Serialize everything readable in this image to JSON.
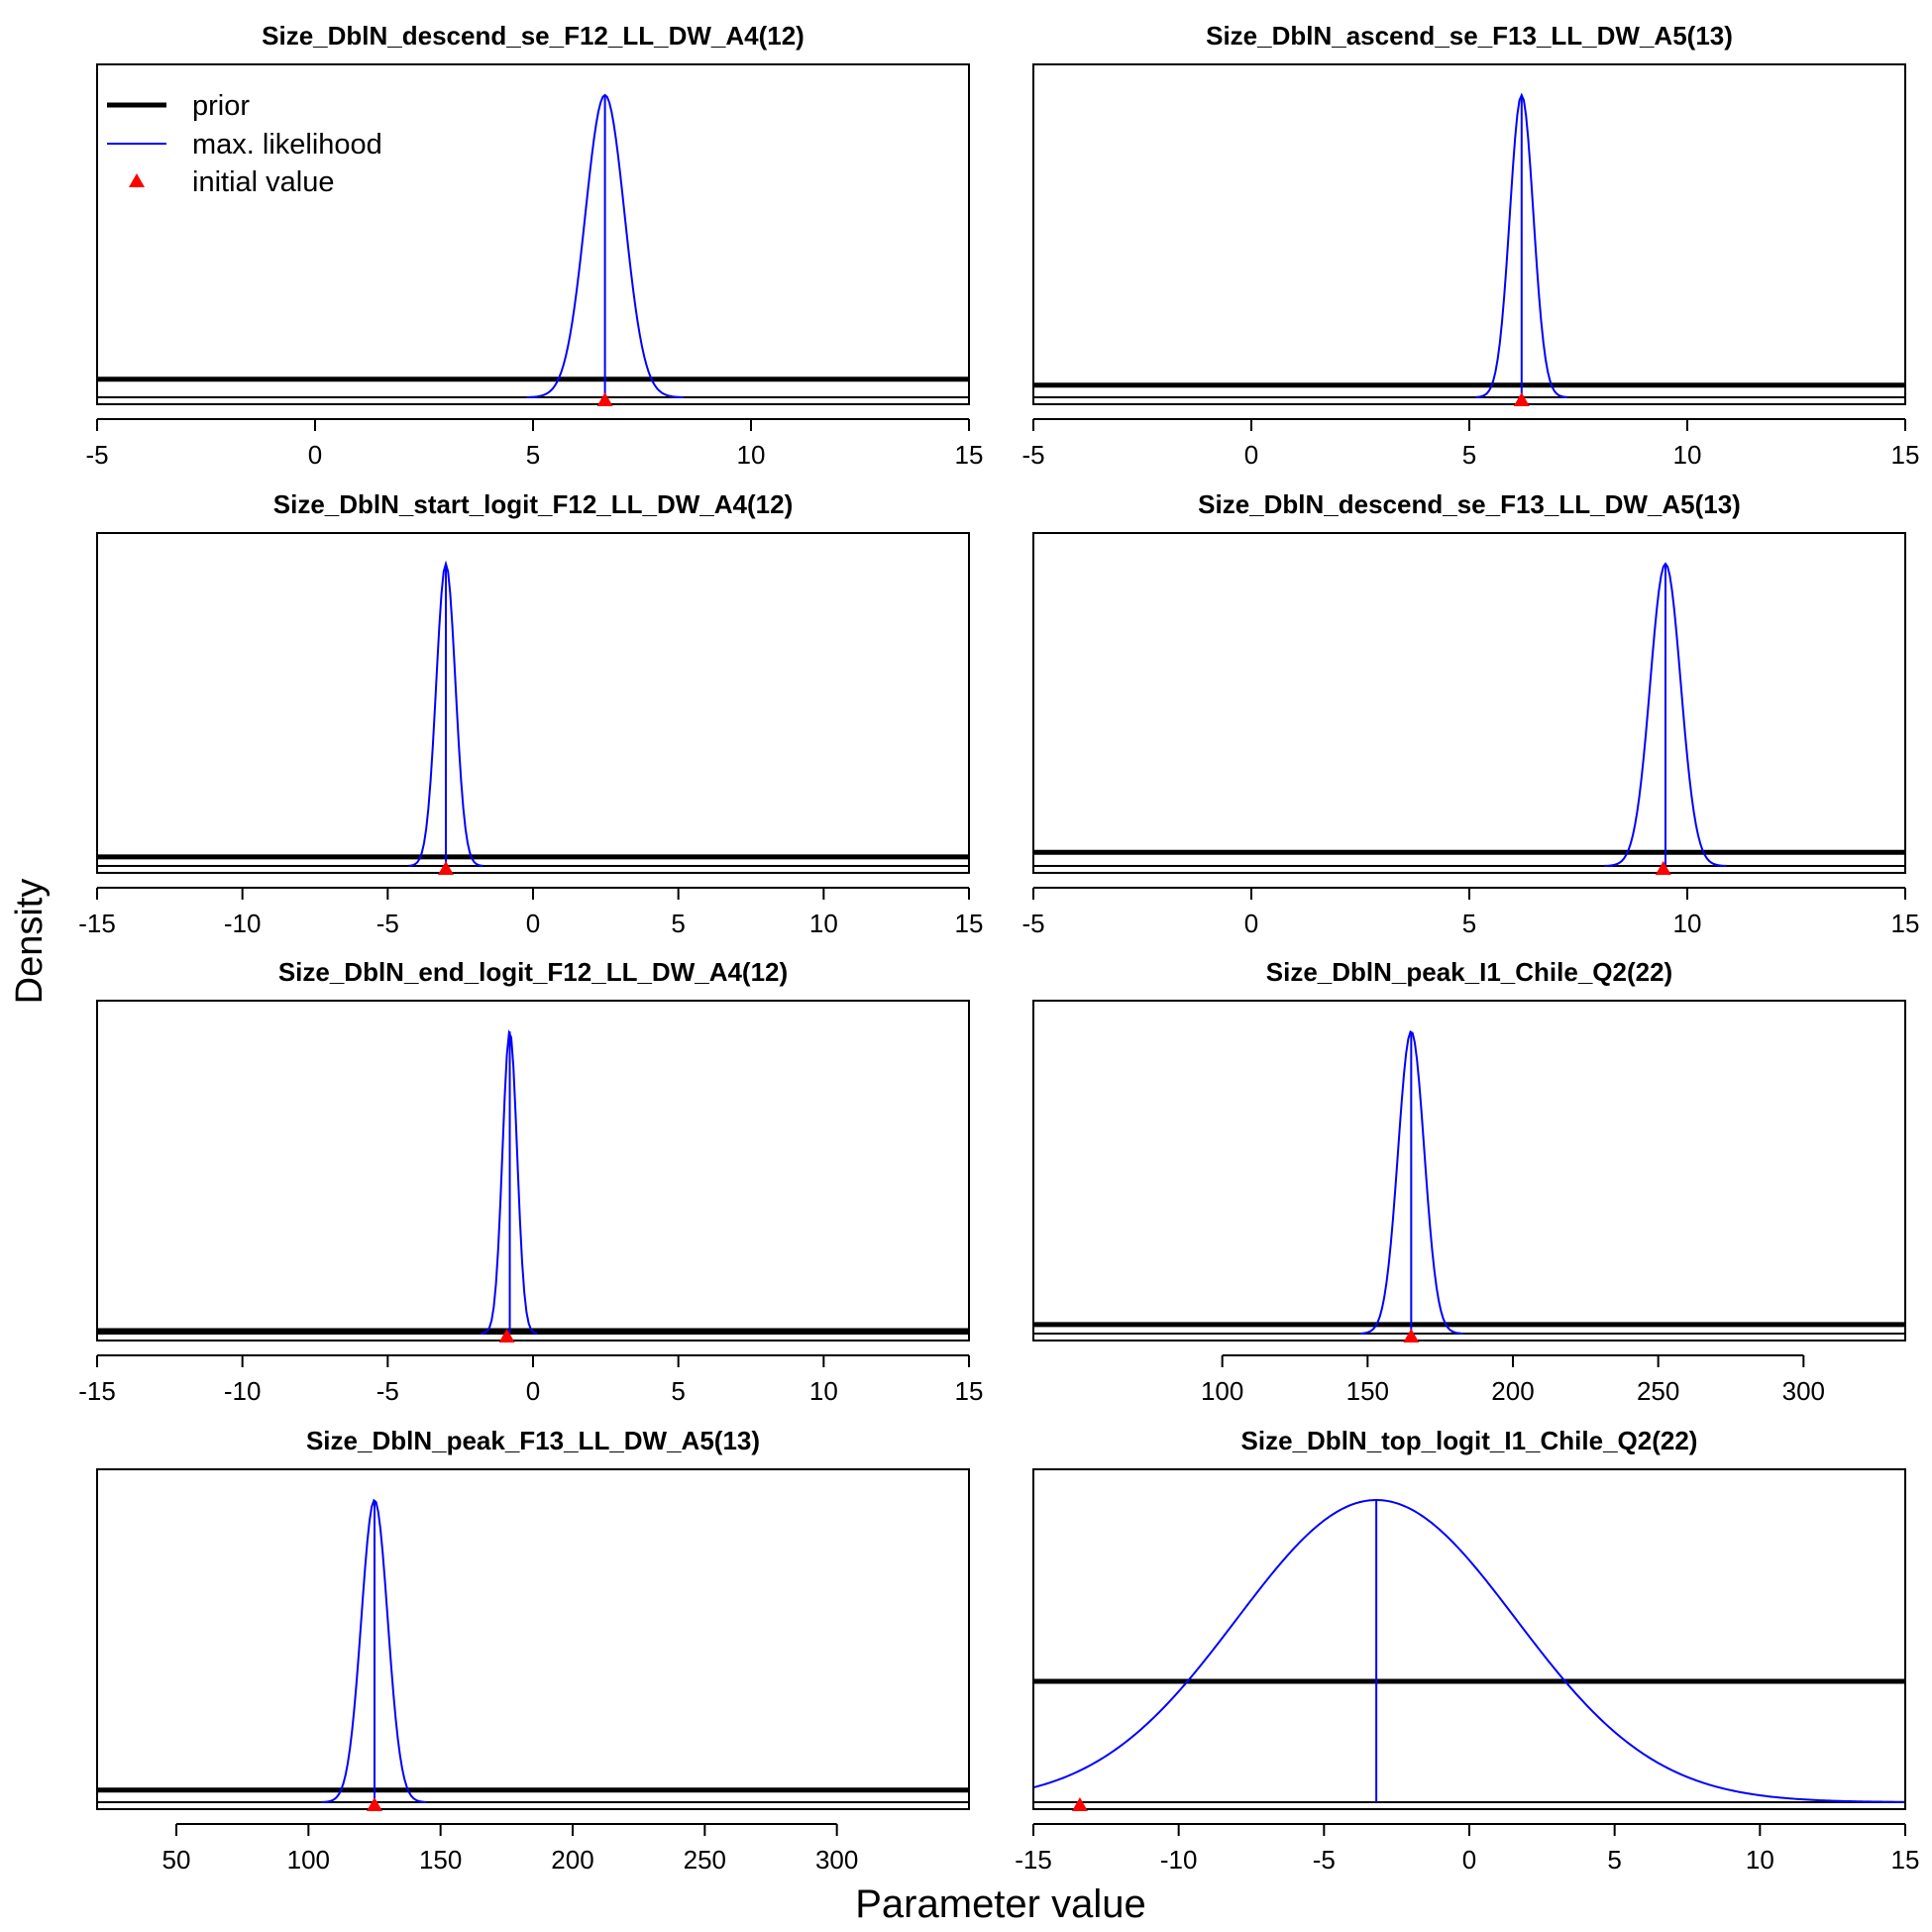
{
  "figure": {
    "xlabel": "Parameter value",
    "ylabel": "Density"
  },
  "legend": {
    "position": "top-left (first panel)",
    "items": [
      {
        "label": "prior",
        "style": "thick-black-line",
        "color": "#000000"
      },
      {
        "label": "max. likelihood",
        "style": "thin-blue-line",
        "color": "#0000ff"
      },
      {
        "label": "initial value",
        "style": "red-triangle",
        "color": "#ff0000"
      }
    ]
  },
  "colors": {
    "prior": "#000000",
    "mle": "#0000ff",
    "initial": "#ff0000"
  },
  "chart_data": [
    {
      "type": "line",
      "title": "Size_DblN_descend_se_F12_LL_DW_A4(12)",
      "xlim": [
        -5,
        15
      ],
      "xticks": [
        "-5",
        "0",
        "5",
        "10",
        "15"
      ],
      "mle": 6.65,
      "sd": 0.45,
      "initial": 6.65,
      "prior_level": 0.06,
      "grid": false
    },
    {
      "type": "line",
      "title": "Size_DblN_ascend_se_F13_LL_DW_A5(13)",
      "xlim": [
        -5,
        15
      ],
      "xticks": [
        "-5",
        "0",
        "5",
        "10",
        "15"
      ],
      "mle": 6.2,
      "sd": 0.27,
      "initial": 6.2,
      "prior_level": 0.04,
      "grid": false
    },
    {
      "type": "line",
      "title": "Size_DblN_start_logit_F12_LL_DW_A4(12)",
      "xlim": [
        -15,
        15
      ],
      "xticks": [
        "-15",
        "-10",
        "-5",
        "0",
        "5",
        "10",
        "15"
      ],
      "mle": -3.0,
      "sd": 0.33,
      "initial": -3.0,
      "prior_level": 0.03,
      "grid": false
    },
    {
      "type": "line",
      "title": "Size_DblN_descend_se_F13_LL_DW_A5(13)",
      "xlim": [
        -5,
        15
      ],
      "xticks": [
        "-5",
        "0",
        "5",
        "10",
        "15"
      ],
      "mle": 9.5,
      "sd": 0.35,
      "initial": 9.45,
      "prior_level": 0.045,
      "grid": false
    },
    {
      "type": "line",
      "title": "Size_DblN_end_logit_F12_LL_DW_A4(12)",
      "xlim": [
        -15,
        15
      ],
      "xticks": [
        "-15",
        "-10",
        "-5",
        "0",
        "5",
        "10",
        "15"
      ],
      "mle": -0.8,
      "sd": 0.25,
      "initial": -0.9,
      "prior_level": 0.01,
      "grid": false
    },
    {
      "type": "line",
      "title": "Size_DblN_peak_I1_Chile_Q2(22)",
      "xlim": [
        35,
        335
      ],
      "xticks": [
        "100",
        "150",
        "200",
        "250",
        "300"
      ],
      "mle": 165,
      "sd": 4.5,
      "initial": 165,
      "prior_level": 0.03,
      "grid": false
    },
    {
      "type": "line",
      "title": "Size_DblN_peak_F13_LL_DW_A5(13)",
      "xlim": [
        20,
        350
      ],
      "xticks": [
        "50",
        "100",
        "150",
        "200",
        "250",
        "300"
      ],
      "mle": 125,
      "sd": 5.0,
      "initial": 125,
      "prior_level": 0.04,
      "grid": false
    },
    {
      "type": "line",
      "title": "Size_DblN_top_logit_I1_Chile_Q2(22)",
      "xlim": [
        -15,
        15
      ],
      "xticks": [
        "-15",
        "-10",
        "-5",
        "0",
        "5",
        "10",
        "15"
      ],
      "mle": -3.2,
      "sd": 4.8,
      "initial": -13.4,
      "prior_level": 0.4,
      "grid": false
    }
  ]
}
